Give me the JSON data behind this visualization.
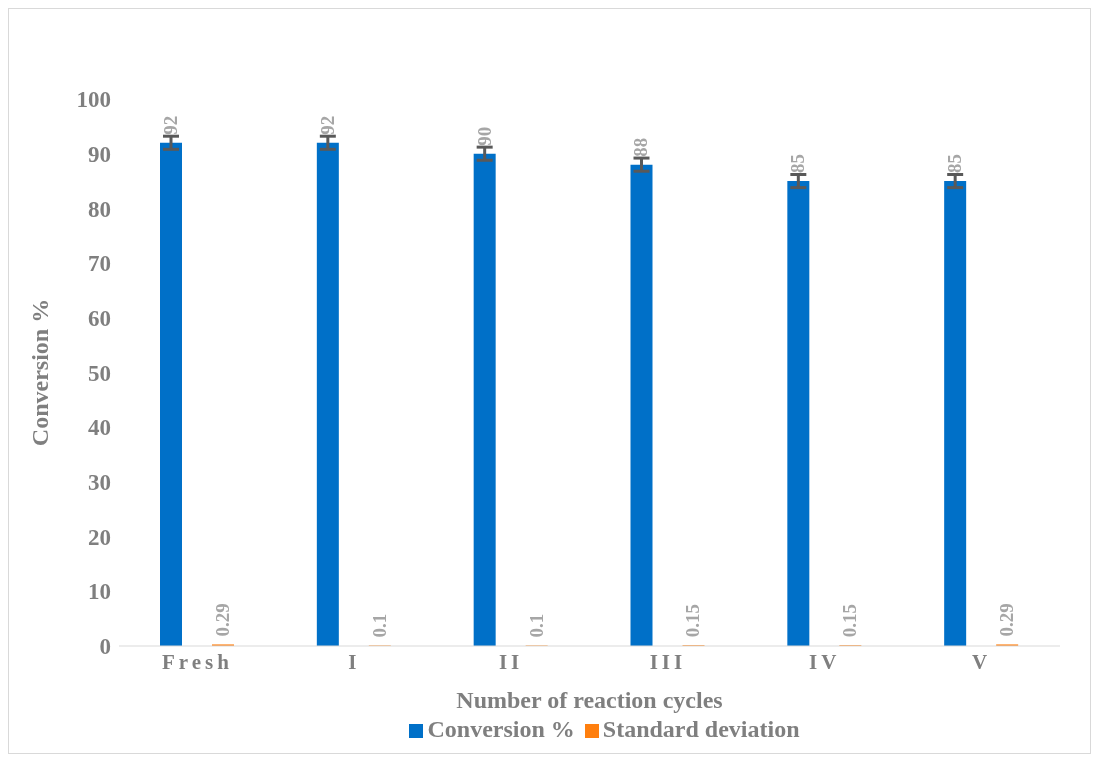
{
  "chart_data": {
    "type": "bar",
    "xlabel": "Number of reaction cycles",
    "ylabel": "Conversion %",
    "categories": [
      "Fresh",
      "I",
      "II",
      "III",
      "IV",
      "V"
    ],
    "series": [
      {
        "name": "Conversion %",
        "color": "#0070c8",
        "values": [
          92,
          92,
          90,
          88,
          85,
          85
        ],
        "errors": [
          1.2,
          1.2,
          1.2,
          1.2,
          1.2,
          1.2
        ]
      },
      {
        "name": "Standard deviation",
        "color": "#ff7f0e",
        "values": [
          0.29,
          0.1,
          0.1,
          0.15,
          0.15,
          0.29
        ]
      }
    ],
    "ylim": [
      0,
      100
    ],
    "yticks": [
      0,
      10,
      20,
      30,
      40,
      50,
      60,
      70,
      80,
      90,
      100
    ],
    "grid": false,
    "legend": "bottom",
    "data_labels": true
  }
}
